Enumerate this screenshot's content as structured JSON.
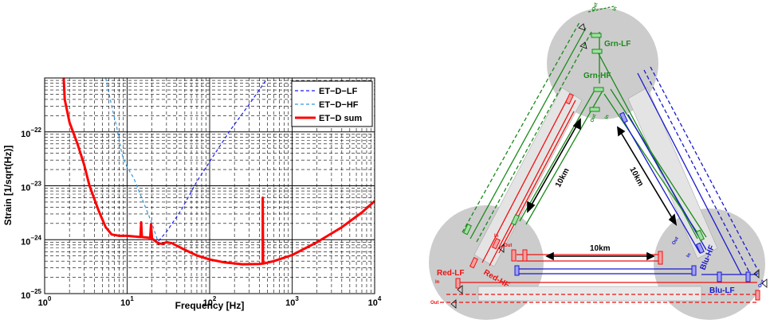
{
  "chart_data": {
    "type": "line",
    "title": "",
    "xlabel": "Frequency [Hz]",
    "ylabel": "Strain [1/sqrt(Hz)]",
    "xscale": "log",
    "yscale": "log",
    "xlim": [
      1,
      10000
    ],
    "ylim": [
      1e-25,
      1e-21
    ],
    "grid": true,
    "legend_position": "top-right",
    "x_ticks": [
      {
        "value": 1,
        "base": "10",
        "exp": "0"
      },
      {
        "value": 10,
        "base": "10",
        "exp": "1"
      },
      {
        "value": 100,
        "base": "10",
        "exp": "2"
      },
      {
        "value": 1000,
        "base": "10",
        "exp": "3"
      },
      {
        "value": 10000,
        "base": "10",
        "exp": "4"
      }
    ],
    "y_ticks": [
      {
        "value": 1e-25,
        "base": "10",
        "exp": "−25"
      },
      {
        "value": 1e-24,
        "base": "10",
        "exp": "−24"
      },
      {
        "value": 1e-23,
        "base": "10",
        "exp": "−23"
      },
      {
        "value": 1e-22,
        "base": "10",
        "exp": "−22"
      }
    ],
    "series": [
      {
        "name": "ET−D−LF",
        "color": "#1a1aff",
        "style": "dashed",
        "points": [
          [
            24,
            9.5e-25
          ],
          [
            30,
            1.4e-24
          ],
          [
            45,
            3.5e-24
          ],
          [
            70,
            1.2e-23
          ],
          [
            110,
            3.5e-23
          ],
          [
            180,
            1.1e-22
          ],
          [
            300,
            3.2e-22
          ],
          [
            480,
            9e-22
          ]
        ]
      },
      {
        "name": "ET−D−HF",
        "color": "#3399dd",
        "style": "dashed",
        "points": [
          [
            5.5,
            1e-21
          ],
          [
            6.5,
            3e-22
          ],
          [
            7.5,
            1.2e-22
          ],
          [
            8.2,
            6e-23
          ],
          [
            8.6,
            4e-23
          ],
          [
            9.2,
            3e-23
          ],
          [
            10,
            2.2e-23
          ],
          [
            12,
            1.4e-23
          ],
          [
            15,
            6e-24
          ],
          [
            20,
            2e-24
          ],
          [
            23,
            1.05e-24
          ],
          [
            24,
            9e-25
          ]
        ]
      },
      {
        "name": "ET−D sum",
        "color": "#ff0000",
        "style": "solid",
        "points": [
          [
            1.7,
            1e-21
          ],
          [
            1.75,
            4e-22
          ],
          [
            2,
            1.5e-22
          ],
          [
            2.5,
            6e-23
          ],
          [
            3,
            2.5e-23
          ],
          [
            3.5,
            1e-23
          ],
          [
            4.5,
            3.5e-24
          ],
          [
            5.5,
            1.7e-24
          ],
          [
            6.5,
            1.25e-24
          ],
          [
            8,
            1.18e-24
          ],
          [
            10,
            1.18e-24
          ],
          [
            12,
            1.15e-24
          ],
          [
            14.5,
            1.12e-24
          ],
          [
            14.8,
            2.1e-24
          ],
          [
            15.1,
            1.12e-24
          ],
          [
            19,
            1.08e-24
          ],
          [
            19.5,
            1.95e-24
          ],
          [
            20,
            1.05e-24
          ],
          [
            24,
            8.5e-25
          ],
          [
            27,
            8.4e-25
          ],
          [
            30,
            9e-25
          ],
          [
            35,
            8.6e-25
          ],
          [
            50,
            6.5e-25
          ],
          [
            70,
            5.1e-25
          ],
          [
            100,
            4.3e-25
          ],
          [
            150,
            3.8e-25
          ],
          [
            250,
            3.5e-25
          ],
          [
            400,
            3.55e-25
          ],
          [
            440,
            3.6e-25
          ],
          [
            440,
            6e-24
          ],
          [
            445,
            3.6e-25
          ],
          [
            600,
            4e-25
          ],
          [
            1000,
            5.2e-25
          ],
          [
            2000,
            9e-25
          ],
          [
            4000,
            1.7e-24
          ],
          [
            7000,
            3.2e-24
          ],
          [
            10000,
            5.2e-24
          ]
        ]
      }
    ]
  },
  "diagram": {
    "distance_labels": [
      "10km",
      "10km",
      "10km"
    ],
    "detectors": [
      "Grn-LF",
      "Grn-HF",
      "Red-LF",
      "Red-HF",
      "Blu-LF",
      "Blu-HF"
    ],
    "port_labels": [
      "In",
      "Out",
      "In",
      "Out",
      "In",
      "Out",
      "In",
      "Out",
      "In",
      "Out",
      "In",
      "Out"
    ],
    "colors": {
      "green": "#1a8a1a",
      "red": "#ee1111",
      "blue": "#1a1acc",
      "gray": "#cccccc"
    }
  }
}
